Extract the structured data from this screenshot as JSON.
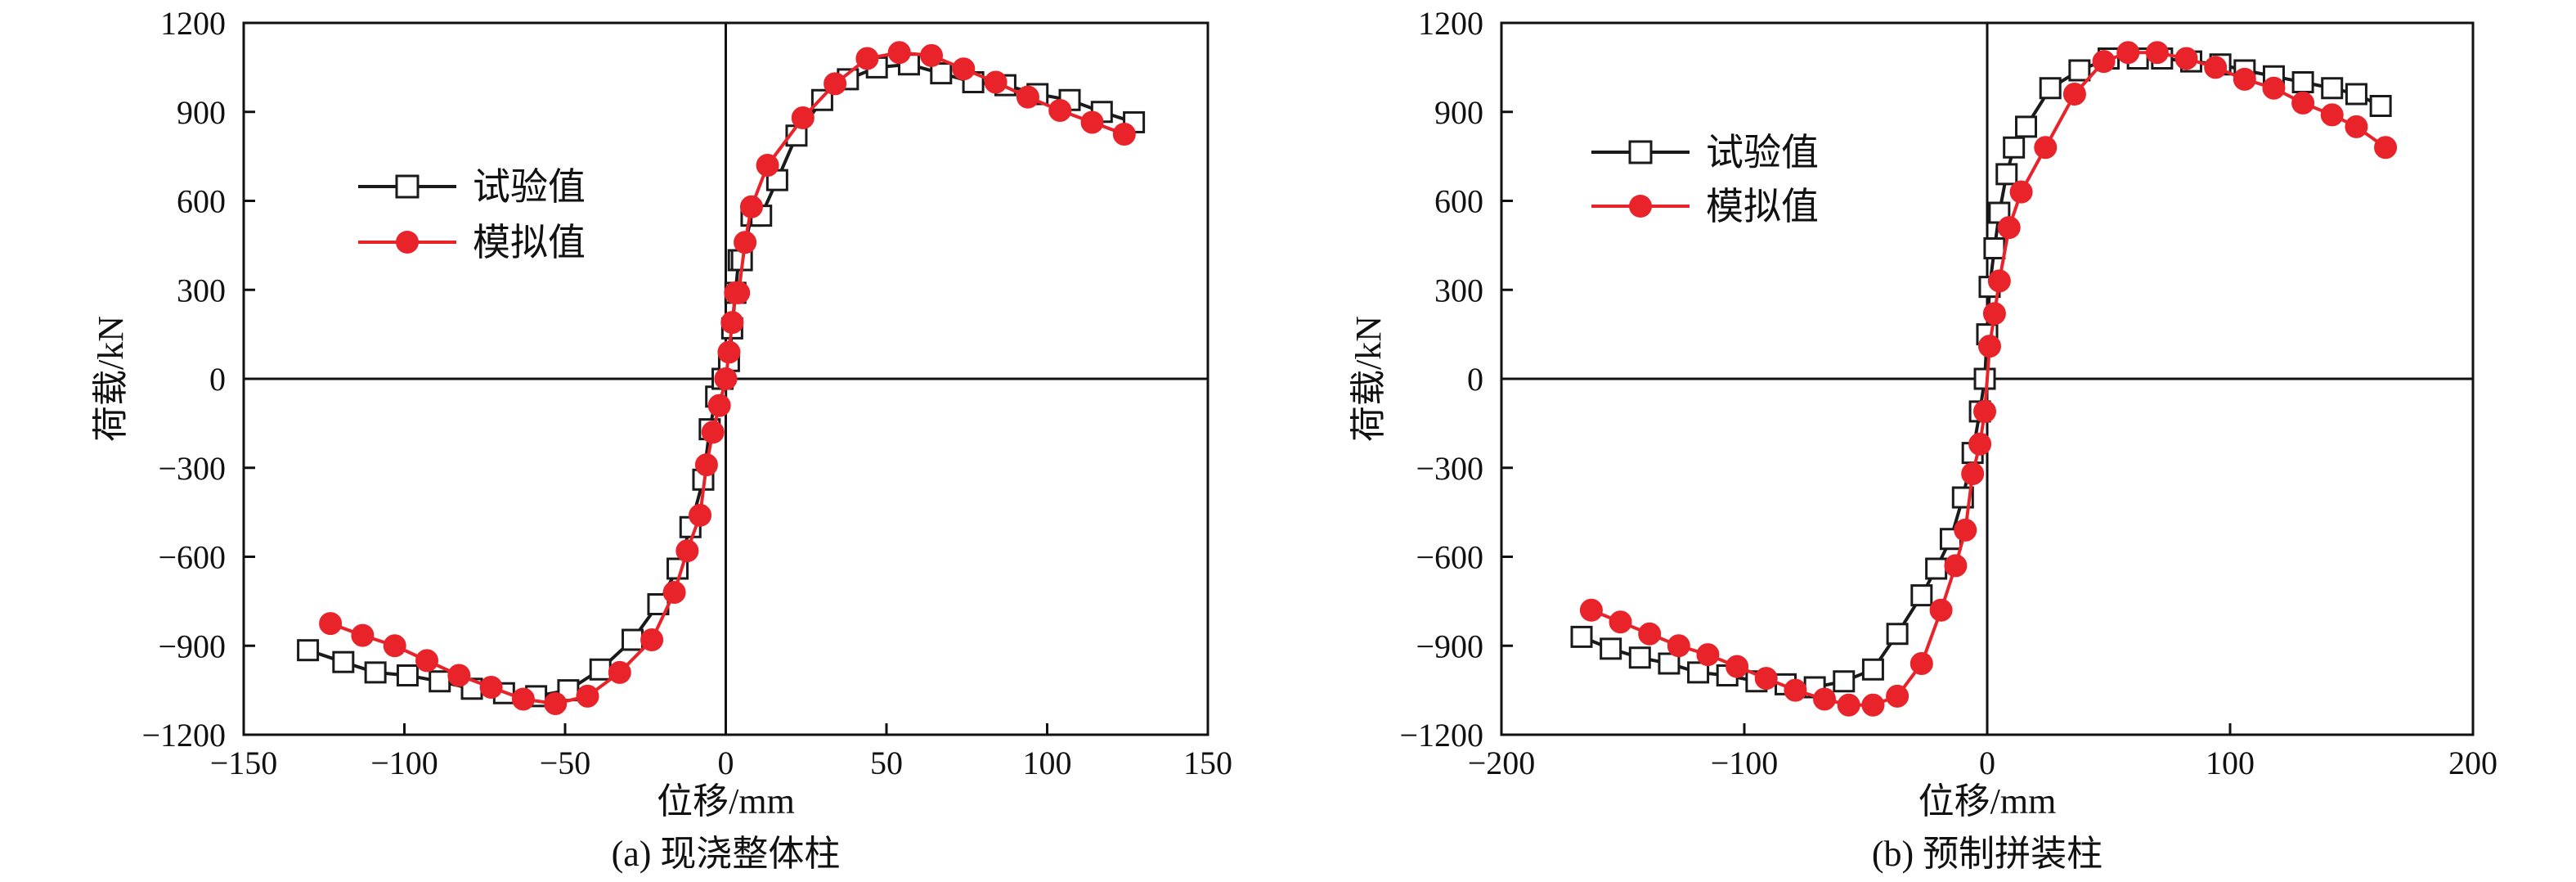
{
  "figure": {
    "captions": [
      "(a) 现浇整体柱",
      "(b) 预制拼装柱"
    ]
  },
  "colors": {
    "test": "#1a1a1a",
    "sim": "#e8232a",
    "axis": "#111111"
  },
  "chart_data": [
    {
      "type": "line",
      "caption": "(a) 现浇整体柱",
      "xlabel": "位移/mm",
      "ylabel": "荷载/kN",
      "xlim": [
        -150,
        150
      ],
      "ylim": [
        -1200,
        1200
      ],
      "xticks": [
        -150,
        -100,
        -50,
        0,
        50,
        100,
        150
      ],
      "yticks": [
        -1200,
        -900,
        -600,
        -300,
        0,
        300,
        600,
        900,
        1200
      ],
      "xtick_labels": [
        "−150",
        "−100",
        "−50",
        "0",
        "50",
        "100",
        "150"
      ],
      "ytick_labels": [
        "−1200",
        "−900",
        "−600",
        "−300",
        "0",
        "300",
        "600",
        "900",
        "1200"
      ],
      "grid": false,
      "legend": "upper-left",
      "series": [
        {
          "name": "试验值",
          "marker": "open-square",
          "x": [
            -130,
            -119,
            -109,
            -99,
            -89,
            -79,
            -69,
            -59,
            -49,
            -39,
            -29,
            -21,
            -15,
            -11,
            -7,
            -5,
            -3,
            -1,
            1,
            2,
            3,
            4,
            5,
            8,
            11,
            16,
            22,
            30,
            38,
            47,
            57,
            67,
            77,
            87,
            97,
            107,
            117,
            127
          ],
          "y": [
            -915,
            -955,
            -990,
            -1000,
            -1020,
            -1045,
            -1060,
            -1070,
            -1050,
            -980,
            -880,
            -760,
            -640,
            -500,
            -340,
            -170,
            -60,
            0,
            60,
            170,
            290,
            400,
            400,
            550,
            550,
            670,
            820,
            940,
            1010,
            1050,
            1060,
            1030,
            1000,
            990,
            960,
            940,
            900,
            865
          ]
        },
        {
          "name": "模拟值",
          "marker": "filled-circle",
          "x": [
            -123,
            -113,
            -103,
            -93,
            -83,
            -73,
            -63,
            -53,
            -43,
            -33,
            -23,
            -16,
            -12,
            -8,
            -6,
            -4,
            -2,
            0,
            1,
            2,
            3,
            4,
            6,
            8,
            13,
            24,
            34,
            44,
            54,
            64,
            74,
            84,
            94,
            104,
            114,
            124
          ],
          "y": [
            -825,
            -865,
            -900,
            -950,
            -1000,
            -1040,
            -1080,
            -1095,
            -1070,
            -990,
            -880,
            -720,
            -580,
            -460,
            -290,
            -180,
            -90,
            0,
            90,
            190,
            290,
            290,
            460,
            580,
            720,
            880,
            995,
            1080,
            1100,
            1090,
            1045,
            1000,
            950,
            905,
            865,
            825
          ]
        }
      ]
    },
    {
      "type": "line",
      "caption": "(b) 预制拼装柱",
      "xlabel": "位移/mm",
      "ylabel": "荷载/kN",
      "xlim": [
        -200,
        200
      ],
      "ylim": [
        -1200,
        1200
      ],
      "xticks": [
        -200,
        -100,
        0,
        100,
        200
      ],
      "yticks": [
        -1200,
        -900,
        -600,
        -300,
        0,
        300,
        600,
        900,
        1200
      ],
      "xtick_labels": [
        "−200",
        "−100",
        "0",
        "100",
        "200"
      ],
      "ytick_labels": [
        "−1200",
        "−900",
        "−600",
        "−300",
        "0",
        "300",
        "600",
        "900",
        "1200"
      ],
      "grid": false,
      "legend": "upper-left",
      "series": [
        {
          "name": "试验值",
          "marker": "open-square",
          "x": [
            -167,
            -155,
            -143,
            -131,
            -119,
            -107,
            -95,
            -83,
            -71,
            -59,
            -47,
            -37,
            -27,
            -21,
            -15,
            -10,
            -6,
            -3,
            -1,
            0,
            1,
            3,
            5,
            8,
            11,
            16,
            26,
            38,
            50,
            62,
            72,
            84,
            96,
            106,
            118,
            130,
            142,
            152,
            162
          ],
          "y": [
            -870,
            -910,
            -940,
            -960,
            -990,
            -1000,
            -1020,
            -1030,
            -1040,
            -1020,
            -980,
            -860,
            -730,
            -640,
            -540,
            -400,
            -250,
            -110,
            0,
            150,
            310,
            440,
            560,
            690,
            780,
            850,
            980,
            1040,
            1080,
            1080,
            1080,
            1070,
            1060,
            1040,
            1020,
            1000,
            980,
            960,
            920
          ]
        },
        {
          "name": "模拟值",
          "marker": "filled-circle",
          "x": [
            -163,
            -151,
            -139,
            -127,
            -115,
            -103,
            -91,
            -79,
            -67,
            -57,
            -47,
            -37,
            -27,
            -19,
            -13,
            -9,
            -6,
            -3,
            -1,
            1,
            3,
            5,
            9,
            14,
            24,
            36,
            48,
            58,
            70,
            82,
            94,
            106,
            118,
            130,
            142,
            152,
            164
          ],
          "y": [
            -780,
            -820,
            -860,
            -900,
            -930,
            -970,
            -1010,
            -1050,
            -1080,
            -1100,
            -1100,
            -1070,
            -960,
            -780,
            -630,
            -510,
            -320,
            -220,
            -110,
            110,
            220,
            330,
            510,
            630,
            780,
            960,
            1070,
            1100,
            1100,
            1080,
            1050,
            1010,
            980,
            930,
            890,
            850,
            780
          ]
        }
      ]
    }
  ]
}
